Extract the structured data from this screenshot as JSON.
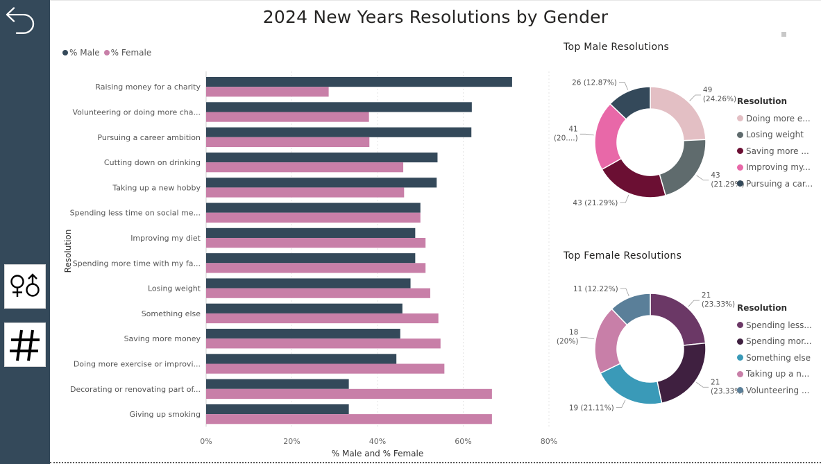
{
  "title": "2024 New Years Resolutions by Gender",
  "sidebar": {
    "back_icon": "back-arrow-icon",
    "gender_icon": "gender-symbols-icon",
    "hash_icon": "hashtag-icon"
  },
  "legend": {
    "male_label": "% Male",
    "female_label": "% Female"
  },
  "colors": {
    "male": "#34495a",
    "female": "#c87fa8",
    "sidebar": "#34495a"
  },
  "chart_data": [
    {
      "type": "bar",
      "orientation": "horizontal",
      "title": "2024 New Years Resolutions by Gender",
      "ylabel": "Resolution",
      "xlabel": "% Male and % Female",
      "xlim": [
        0,
        80
      ],
      "xticks": [
        "0%",
        "20%",
        "40%",
        "60%",
        "80%"
      ],
      "grid": true,
      "legend_position": "top-left",
      "categories": [
        "Raising money for a charity",
        "Volunteering or doing more cha...",
        "Pursuing a career ambition",
        "Cutting down on drinking",
        "Taking up a new hobby",
        "Spending less time on social me...",
        "Improving my diet",
        "Spending more time with my fa...",
        "Losing weight",
        "Something else",
        "Saving more money",
        "Doing more exercise or improvi...",
        "Decorating or renovating part of...",
        "Giving up smoking"
      ],
      "series": [
        {
          "name": "% Male",
          "color": "#34495a",
          "values": [
            71.4,
            62.0,
            61.9,
            54.0,
            53.8,
            50.0,
            48.8,
            48.8,
            47.7,
            45.8,
            45.3,
            44.4,
            33.3,
            33.3
          ]
        },
        {
          "name": "% Female",
          "color": "#c87fa8",
          "values": [
            28.6,
            38.0,
            38.1,
            46.0,
            46.2,
            50.0,
            51.2,
            51.2,
            52.3,
            54.2,
            54.7,
            55.6,
            66.7,
            66.7
          ]
        }
      ]
    },
    {
      "type": "pie",
      "donut": true,
      "title": "Top Male Resolutions",
      "legend_title": "Resolution",
      "legend_position": "right",
      "slices": [
        {
          "legend": "Doing more e...",
          "value": 49,
          "label": "49",
          "pct_label": "(24.26%)",
          "color": "#e3bfc4"
        },
        {
          "legend": "Losing weight",
          "value": 43,
          "label": "43",
          "pct_label": "(21.29%)",
          "color": "#5f6b6d"
        },
        {
          "legend": "Saving more ...",
          "value": 43,
          "label": "43 (21.29%)",
          "pct_label": "",
          "color": "#6b0f33"
        },
        {
          "legend": "Improving my...",
          "value": 41,
          "label": "41",
          "pct_label": "(20....)",
          "color": "#e868a8"
        },
        {
          "legend": "Pursuing a car...",
          "value": 26,
          "label": "26 (12.87%)",
          "pct_label": "",
          "color": "#34495a"
        }
      ]
    },
    {
      "type": "pie",
      "donut": true,
      "title": "Top Female Resolutions",
      "legend_title": "Resolution",
      "legend_position": "right",
      "slices": [
        {
          "legend": "Spending less...",
          "value": 21,
          "label": "21",
          "pct_label": "(23.33%)",
          "color": "#6b3866"
        },
        {
          "legend": "Spending mor...",
          "value": 21,
          "label": "21",
          "pct_label": "(23.33%)",
          "color": "#3f2040"
        },
        {
          "legend": "Something else",
          "value": 19,
          "label": "19 (21.11%)",
          "pct_label": "",
          "color": "#3a9ab8"
        },
        {
          "legend": "Taking up a n...",
          "value": 18,
          "label": "18",
          "pct_label": "(20%)",
          "color": "#c87fa8"
        },
        {
          "legend": "Volunteering ...",
          "value": 11,
          "label": "11 (12.22%)",
          "pct_label": "",
          "color": "#5a7f99"
        }
      ]
    }
  ]
}
